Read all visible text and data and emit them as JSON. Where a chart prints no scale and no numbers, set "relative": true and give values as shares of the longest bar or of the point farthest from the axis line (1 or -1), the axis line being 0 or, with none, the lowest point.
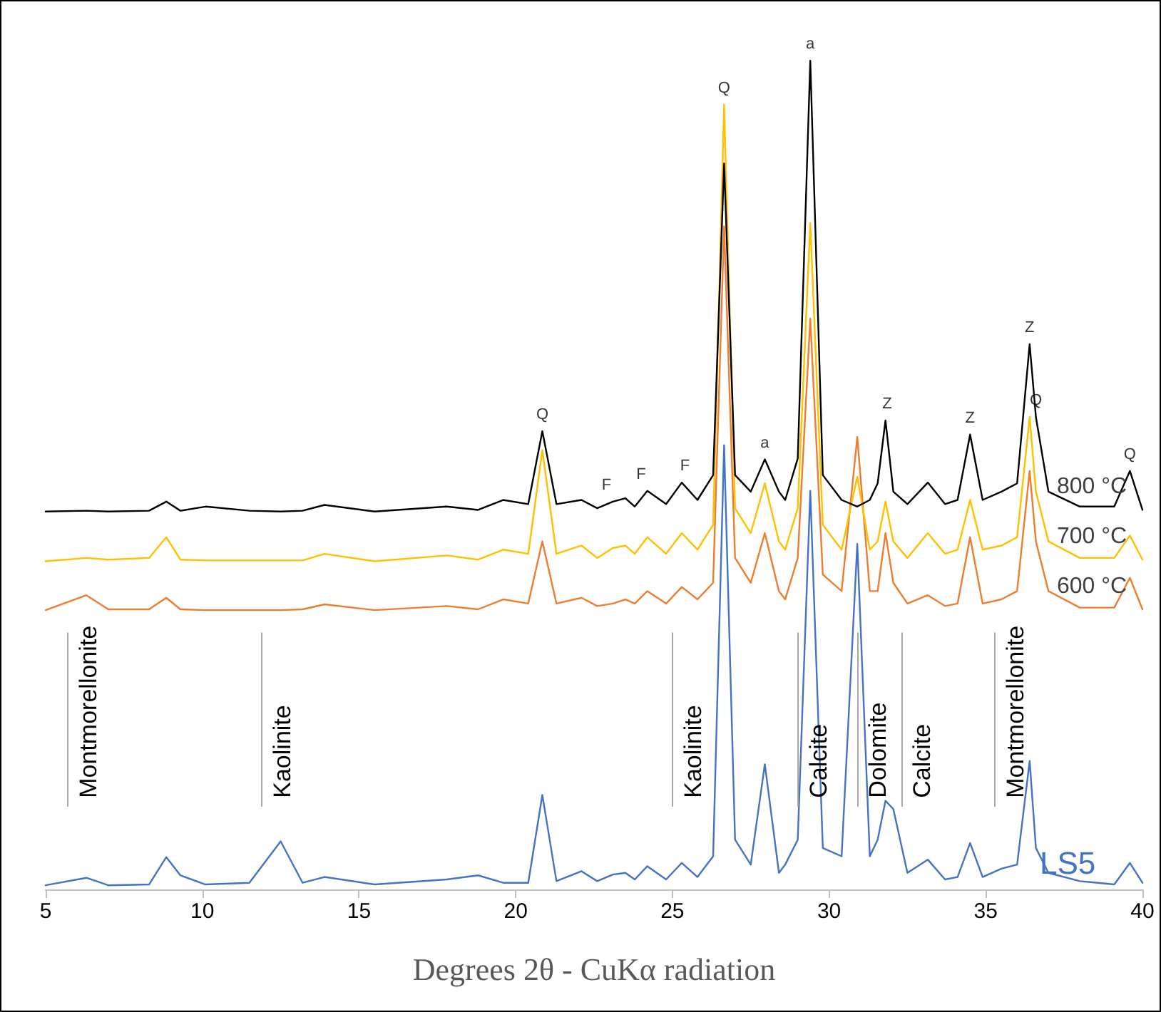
{
  "chart_data": {
    "type": "line",
    "relative": true,
    "xlabel": "Degrees 2θ - CuKα radiation",
    "xlim": [
      5,
      40
    ],
    "xticks": [
      5,
      10,
      15,
      20,
      25,
      30,
      35,
      40
    ],
    "grid": false,
    "legend": false,
    "marker": "none",
    "line_style": "solid",
    "x": [
      5,
      6.3,
      7,
      8.3,
      8.85,
      9.3,
      10.1,
      11.5,
      12.5,
      13.2,
      13.9,
      15.5,
      17.8,
      18.8,
      19.6,
      20.4,
      20.85,
      21.3,
      22.1,
      22.6,
      23.1,
      23.5,
      23.8,
      24.2,
      24.8,
      25.3,
      25.8,
      26.3,
      26.65,
      27.0,
      27.5,
      27.95,
      28.4,
      28.6,
      29.0,
      29.4,
      29.8,
      30.4,
      30.9,
      31.3,
      31.55,
      31.8,
      32.05,
      32.5,
      33.15,
      33.7,
      34.1,
      34.5,
      34.9,
      35.5,
      36.0,
      36.4,
      36.6,
      37.0,
      38.0,
      39.1,
      39.6,
      40.0
    ],
    "series": [
      {
        "name": "LS5",
        "color": "#4472c4",
        "values": [
          0.005,
          0.014,
          0.005,
          0.006,
          0.039,
          0.017,
          0.006,
          0.008,
          0.058,
          0.008,
          0.015,
          0.006,
          0.012,
          0.017,
          0.008,
          0.008,
          0.114,
          0.01,
          0.022,
          0.01,
          0.018,
          0.02,
          0.012,
          0.028,
          0.012,
          0.032,
          0.015,
          0.04,
          0.536,
          0.06,
          0.03,
          0.151,
          0.02,
          0.03,
          0.06,
          0.481,
          0.05,
          0.04,
          0.417,
          0.04,
          0.06,
          0.107,
          0.097,
          0.02,
          0.036,
          0.012,
          0.015,
          0.056,
          0.015,
          0.025,
          0.03,
          0.155,
          0.05,
          0.02,
          0.01,
          0.006,
          0.032,
          0.008
        ]
      },
      {
        "name": "600 °C",
        "color": "#ed7d31",
        "values": [
          0.337,
          0.355,
          0.338,
          0.338,
          0.352,
          0.338,
          0.337,
          0.337,
          0.337,
          0.338,
          0.344,
          0.337,
          0.342,
          0.338,
          0.35,
          0.345,
          0.42,
          0.345,
          0.352,
          0.342,
          0.345,
          0.35,
          0.345,
          0.36,
          0.345,
          0.365,
          0.35,
          0.37,
          0.8,
          0.4,
          0.37,
          0.43,
          0.36,
          0.35,
          0.4,
          0.689,
          0.38,
          0.36,
          0.546,
          0.36,
          0.36,
          0.43,
          0.37,
          0.345,
          0.355,
          0.342,
          0.345,
          0.425,
          0.345,
          0.35,
          0.36,
          0.505,
          0.42,
          0.36,
          0.34,
          0.34,
          0.376,
          0.338
        ]
      },
      {
        "name": "700 °C",
        "color": "#ffc000",
        "values": [
          0.396,
          0.4,
          0.398,
          0.4,
          0.425,
          0.398,
          0.397,
          0.397,
          0.397,
          0.397,
          0.405,
          0.396,
          0.403,
          0.398,
          0.41,
          0.405,
          0.53,
          0.405,
          0.415,
          0.4,
          0.412,
          0.415,
          0.405,
          0.425,
          0.405,
          0.43,
          0.41,
          0.44,
          0.947,
          0.46,
          0.43,
          0.49,
          0.42,
          0.41,
          0.46,
          0.804,
          0.44,
          0.41,
          0.498,
          0.41,
          0.42,
          0.468,
          0.42,
          0.4,
          0.43,
          0.405,
          0.41,
          0.47,
          0.41,
          0.415,
          0.425,
          0.57,
          0.48,
          0.42,
          0.4,
          0.4,
          0.427,
          0.398
        ]
      },
      {
        "name": "800 °C",
        "color": "#000000",
        "values": [
          0.456,
          0.457,
          0.456,
          0.457,
          0.468,
          0.457,
          0.462,
          0.457,
          0.456,
          0.457,
          0.464,
          0.456,
          0.462,
          0.458,
          0.47,
          0.465,
          0.553,
          0.465,
          0.47,
          0.46,
          0.468,
          0.472,
          0.462,
          0.481,
          0.465,
          0.491,
          0.47,
          0.5,
          0.876,
          0.5,
          0.48,
          0.519,
          0.48,
          0.47,
          0.52,
          1,
          0.5,
          0.47,
          0.462,
          0.47,
          0.49,
          0.566,
          0.48,
          0.465,
          0.491,
          0.465,
          0.47,
          0.549,
          0.47,
          0.48,
          0.49,
          0.658,
          0.57,
          0.48,
          0.462,
          0.462,
          0.505,
          0.458
        ]
      }
    ],
    "ref_lines": [
      {
        "axis": "x",
        "value": 5.7,
        "label": "Montmorellonite",
        "color": "#a6a6a6"
      },
      {
        "axis": "x",
        "value": 11.9,
        "label": "Kaolinite",
        "color": "#a6a6a6"
      },
      {
        "axis": "x",
        "value": 25.0,
        "label": "Kaolinite",
        "color": "#a6a6a6"
      },
      {
        "axis": "x",
        "value": 29.0,
        "label": "Calcite",
        "color": "#a6a6a6"
      },
      {
        "axis": "x",
        "value": 30.9,
        "label": "Dolomite",
        "color": "#a6a6a6"
      },
      {
        "axis": "x",
        "value": 32.3,
        "label": "Calcite",
        "color": "#a6a6a6"
      },
      {
        "axis": "x",
        "value": 35.3,
        "label": "Montmorellonite",
        "color": "#a6a6a6"
      }
    ],
    "annotations": [
      {
        "text": "Q",
        "x": 20.85,
        "y": 0.553
      },
      {
        "text": "F",
        "x": 22.9,
        "y": 0.468
      },
      {
        "text": "F",
        "x": 24.0,
        "y": 0.481
      },
      {
        "text": "F",
        "x": 25.4,
        "y": 0.491
      },
      {
        "text": "Q",
        "x": 26.65,
        "y": 0.947
      },
      {
        "text": "a",
        "x": 27.95,
        "y": 0.519
      },
      {
        "text": "a",
        "x": 29.4,
        "y": 1
      },
      {
        "text": "Z",
        "x": 31.85,
        "y": 0.566
      },
      {
        "text": "Z",
        "x": 34.5,
        "y": 0.549
      },
      {
        "text": "Z",
        "x": 36.4,
        "y": 0.658
      },
      {
        "text": "Q",
        "x": 36.6,
        "y": 0.57
      },
      {
        "text": "Q",
        "x": 39.6,
        "y": 0.505
      }
    ]
  }
}
